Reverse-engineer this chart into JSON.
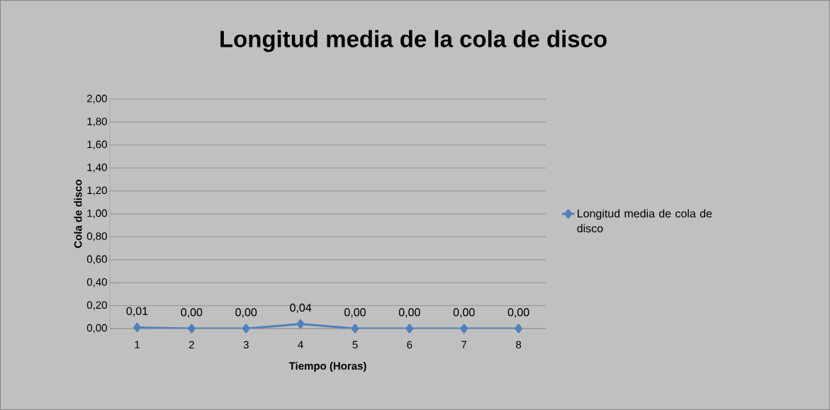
{
  "chart_data": {
    "type": "line",
    "title": "Longitud media de la cola de disco",
    "xlabel": "Tiempo (Horas)",
    "ylabel": "Cola de disco",
    "categories": [
      "1",
      "2",
      "3",
      "4",
      "5",
      "6",
      "7",
      "8"
    ],
    "series": [
      {
        "name": "Longitud media de cola de disco",
        "color": "#4f81bd",
        "values": [
          0.01,
          0,
          0,
          0.04,
          0,
          0,
          0,
          0
        ],
        "value_labels": [
          "0,01",
          "0,00",
          "0,00",
          "0,04",
          "0,00",
          "0,00",
          "0,00",
          "0,00"
        ]
      }
    ],
    "ylim": [
      0,
      2
    ],
    "yticks": [
      {
        "value": 0,
        "label": "0,00"
      },
      {
        "value": 0.2,
        "label": "0,20"
      },
      {
        "value": 0.4,
        "label": "0,40"
      },
      {
        "value": 0.6,
        "label": "0,60"
      },
      {
        "value": 0.8,
        "label": "0,80"
      },
      {
        "value": 1,
        "label": "1,00"
      },
      {
        "value": 1.2,
        "label": "1,20"
      },
      {
        "value": 1.4,
        "label": "1,40"
      },
      {
        "value": 1.6,
        "label": "1,60"
      },
      {
        "value": 1.8,
        "label": "1,80"
      },
      {
        "value": 2,
        "label": "2,00"
      }
    ],
    "grid": "y",
    "legend": "right",
    "marker": "diamond",
    "line_style": "solid"
  }
}
